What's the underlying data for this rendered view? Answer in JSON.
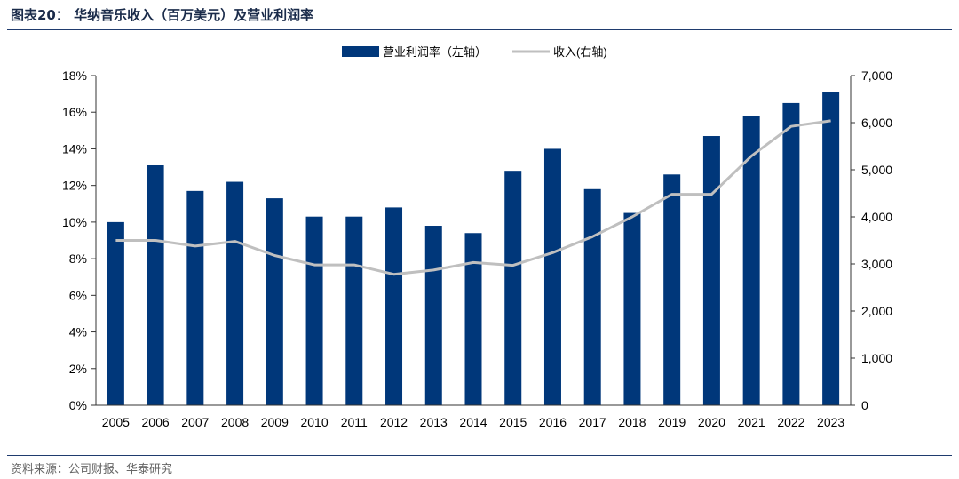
{
  "figure": {
    "title": "图表20： 华纳音乐收入（百万美元）及营业利润率",
    "source": "资料来源：公司财报、华泰研究"
  },
  "colors": {
    "bar": "#00377A",
    "line": "#BFBFBF",
    "rule": "#1F3B6E",
    "axis_text": "#000000"
  },
  "chart_data": {
    "type": "bar",
    "categories": [
      "2005",
      "2006",
      "2007",
      "2008",
      "2009",
      "2010",
      "2011",
      "2012",
      "2013",
      "2014",
      "2015",
      "2016",
      "2017",
      "2018",
      "2019",
      "2020",
      "2021",
      "2022",
      "2023"
    ],
    "series": [
      {
        "name": "营业利润率（左轴）",
        "type": "bar",
        "axis": "left",
        "values": [
          10.0,
          13.1,
          11.7,
          12.2,
          11.3,
          10.3,
          10.3,
          10.8,
          9.8,
          9.4,
          12.8,
          14.0,
          11.8,
          10.5,
          12.6,
          14.7,
          15.8,
          16.5,
          17.1
        ]
      },
      {
        "name": "收入(右轴)",
        "type": "line",
        "axis": "right",
        "values": [
          3500,
          3500,
          3380,
          3480,
          3180,
          2980,
          2980,
          2780,
          2870,
          3030,
          2970,
          3240,
          3580,
          4000,
          4480,
          4480,
          5290,
          5920,
          6040
        ]
      }
    ],
    "y_left": {
      "min": 0,
      "max": 18,
      "ticks": [
        "0%",
        "2%",
        "4%",
        "6%",
        "8%",
        "10%",
        "12%",
        "14%",
        "16%",
        "18%"
      ]
    },
    "y_right": {
      "min": 0,
      "max": 7000,
      "ticks": [
        "0",
        "1,000",
        "2,000",
        "3,000",
        "4,000",
        "5,000",
        "6,000",
        "7,000"
      ]
    },
    "legend_position": "top-center",
    "grid": false
  }
}
